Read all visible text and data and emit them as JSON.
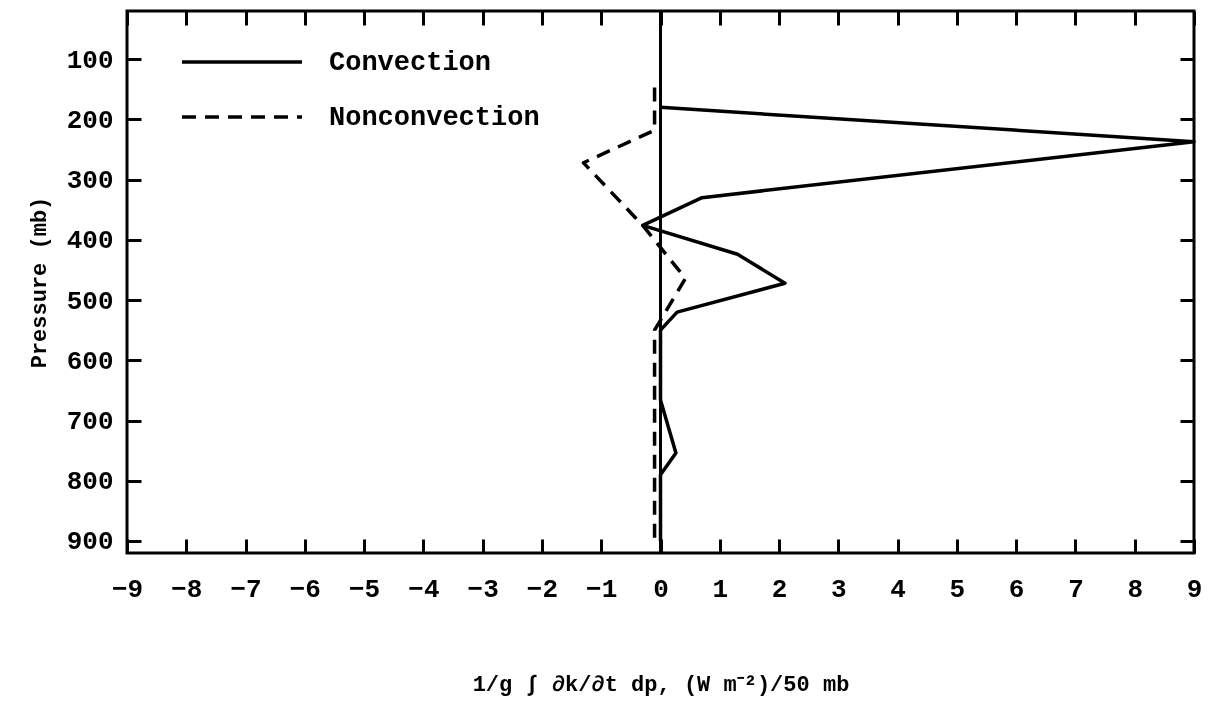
{
  "chart_data": {
    "type": "line",
    "xlabel": "1/g ∫ ∂k/∂t dp, (W m⁻²)/50 mb",
    "ylabel": "Pressure (mb)",
    "series": [
      {
        "name": "Convection",
        "color": "#000000",
        "line_style": "solid",
        "x": [
          0,
          9,
          0.7,
          -0.3,
          1.3,
          2.1,
          0.28,
          0,
          0,
          0.26,
          0,
          0
        ],
        "values": [
          180,
          237,
          330,
          376,
          424,
          472,
          520,
          550,
          666,
          754,
          790,
          900
        ]
      },
      {
        "name": "Nonconvection",
        "color": "#000000",
        "line_style": "dashed",
        "x": [
          -0.1,
          -0.1,
          -1.3,
          -0.3,
          0.42,
          -0.1,
          -0.1
        ],
        "values": [
          147,
          218,
          272,
          376,
          464,
          550,
          900
        ]
      }
    ],
    "xlim": [
      -9,
      9
    ],
    "ylim": [
      920,
      20
    ],
    "xticks": [
      -9,
      -8,
      -7,
      -6,
      -5,
      -4,
      -3,
      -2,
      -1,
      0,
      1,
      2,
      3,
      4,
      5,
      6,
      7,
      8,
      9
    ],
    "yticks": [
      100,
      200,
      300,
      400,
      500,
      600,
      700,
      800,
      900
    ],
    "ref_lines": [
      {
        "axis": "x",
        "value": 0
      }
    ],
    "legend": "top left"
  }
}
